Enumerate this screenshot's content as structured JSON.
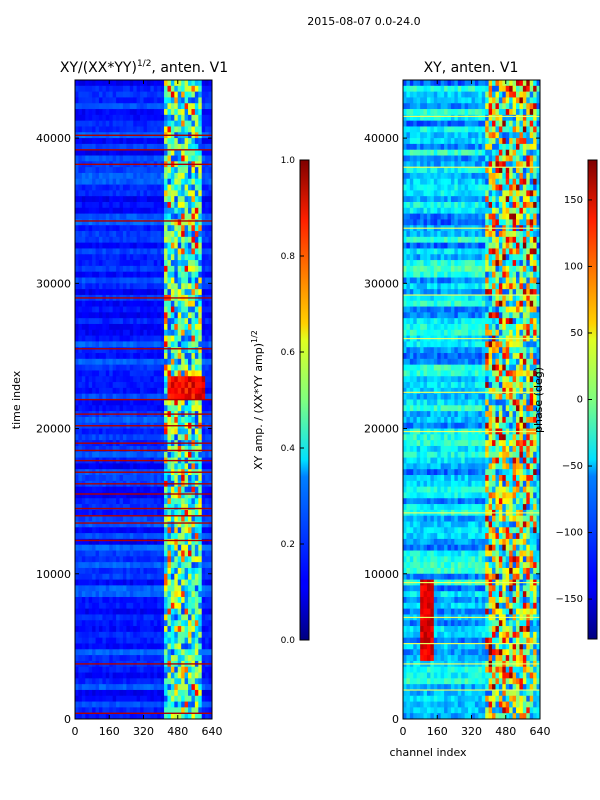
{
  "figure": {
    "suptitle": "2015-08-07 0.0-24.0"
  },
  "chart_data": [
    {
      "type": "heatmap",
      "title": "XY/(XX*YY)",
      "title_superscript": "1/2",
      "title_suffix": ", anten. V1",
      "xlabel": "",
      "ylabel": "time index",
      "xlim": [
        0,
        640
      ],
      "ylim": [
        0,
        44000
      ],
      "xticks": [
        0,
        160,
        320,
        480,
        640
      ],
      "yticks": [
        0,
        10000,
        20000,
        30000,
        40000
      ],
      "colormap": "jet",
      "colorbar": {
        "label": "XY amp. / (XX*YY amp)",
        "label_superscript": "1/2",
        "vmin": 0.0,
        "vmax": 1.0,
        "ticks": [
          "0.0",
          "0.2",
          "0.4",
          "0.6",
          "0.8",
          "1.0"
        ]
      },
      "red_flag_rows": [
        400,
        3800,
        12300,
        13500,
        14000,
        14500,
        15500,
        16200,
        17000,
        17800,
        18500,
        19000,
        20200,
        21000,
        22000,
        25500,
        29000,
        34300,
        38200,
        39200,
        40200
      ],
      "high_amp_region": {
        "channel_range": [
          430,
          600
        ],
        "time_range": [
          22000,
          23500
        ],
        "value": 0.95
      }
    },
    {
      "type": "heatmap",
      "title": "XY, anten. V1",
      "xlabel": "channel index",
      "ylabel": "",
      "xlim": [
        0,
        640
      ],
      "ylim": [
        0,
        44000
      ],
      "xticks": [
        0,
        160,
        320,
        480,
        640
      ],
      "yticks": [
        0,
        10000,
        20000,
        30000,
        40000
      ],
      "colormap": "jet",
      "colorbar": {
        "label": "phase (deg)",
        "vmin": -180,
        "vmax": 180,
        "ticks": [
          "150",
          "100",
          "50",
          "0",
          "−50",
          "−100",
          "−150"
        ]
      },
      "highlight_rows": [
        2000,
        3800,
        5200,
        7000,
        9400,
        14200,
        19800,
        22500,
        26200,
        29200,
        33800,
        38000,
        41500
      ]
    }
  ]
}
